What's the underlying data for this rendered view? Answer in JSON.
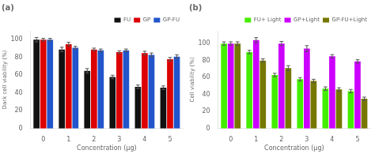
{
  "chart_data": [
    {
      "type": "bar",
      "title": "(a)",
      "xlabel": "Concentration (μg)",
      "ylabel": "Dark cell viability (%)",
      "categories": [
        "0",
        "1",
        "2",
        "3",
        "4",
        "5"
      ],
      "series": [
        {
          "name": "FU",
          "color": "#111111",
          "values": [
            100,
            89,
            65,
            58,
            47,
            46
          ],
          "errors": [
            2.5,
            2.5,
            2.5,
            2.0,
            2.0,
            2.0
          ]
        },
        {
          "name": "GP",
          "color": "#dd0000",
          "values": [
            100,
            95,
            89,
            86,
            85,
            78
          ],
          "errors": [
            1.5,
            2.0,
            1.5,
            1.5,
            2.0,
            2.0
          ]
        },
        {
          "name": "GP-FU",
          "color": "#2255cc",
          "values": [
            100,
            91,
            88,
            88,
            83,
            81
          ],
          "errors": [
            1.5,
            1.5,
            1.5,
            1.5,
            2.0,
            2.0
          ]
        }
      ],
      "ylim": [
        0,
        110
      ],
      "yticks": [
        0,
        20,
        40,
        60,
        80,
        100
      ],
      "grid": false,
      "legend": "upper right"
    },
    {
      "type": "bar",
      "title": "(b)",
      "xlabel": "Concentration (μg)",
      "ylabel": "Cell viability (%)",
      "categories": [
        "0",
        "1",
        "2",
        "3",
        "4",
        "5"
      ],
      "series": [
        {
          "name": "FU+ Light",
          "color": "#44ee00",
          "values": [
            100,
            90,
            63,
            58,
            47,
            44
          ],
          "errors": [
            2.0,
            2.0,
            2.0,
            2.0,
            2.0,
            2.0
          ]
        },
        {
          "name": "GP+Light",
          "color": "#cc00ff",
          "values": [
            100,
            104,
            100,
            94,
            85,
            79
          ],
          "errors": [
            2.0,
            3.0,
            2.5,
            3.5,
            2.0,
            2.0
          ]
        },
        {
          "name": "GP-FU+Light",
          "color": "#777700",
          "values": [
            100,
            80,
            71,
            56,
            46,
            35
          ],
          "errors": [
            2.0,
            2.0,
            3.0,
            2.0,
            2.0,
            2.0
          ]
        }
      ],
      "ylim": [
        0,
        115
      ],
      "yticks": [
        0,
        20,
        40,
        60,
        80,
        100
      ],
      "grid": false,
      "legend": "upper right"
    }
  ]
}
